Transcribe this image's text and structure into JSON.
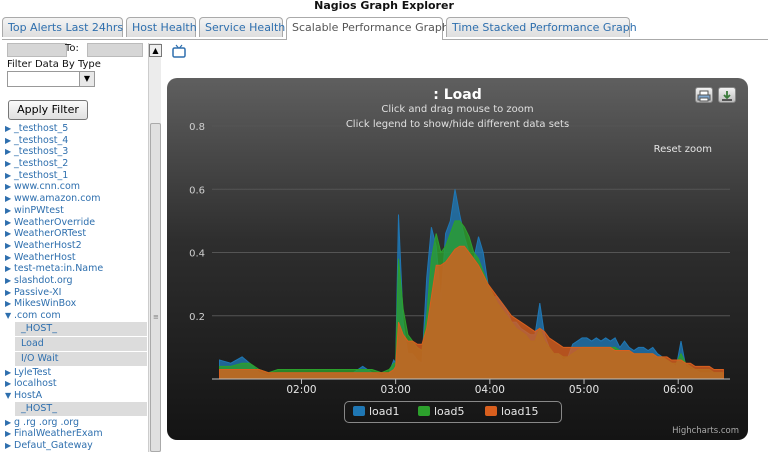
{
  "app": {
    "title": "Nagios Graph Explorer"
  },
  "tabs": [
    {
      "label": "Top Alerts Last 24hrs",
      "active": false
    },
    {
      "label": "Host Health",
      "active": false
    },
    {
      "label": "Service Health",
      "active": false
    },
    {
      "label": "Scalable Performance Graph",
      "active": true
    },
    {
      "label": "Time Stacked Performance Graph",
      "active": false
    }
  ],
  "sidebar": {
    "to_label": "To:",
    "filter_label": "Filter Data By Type",
    "filter_value": "",
    "apply_label": "Apply Filter",
    "hosts": [
      {
        "label": "_testhost_5",
        "expanded": false
      },
      {
        "label": "_testhost_4",
        "expanded": false
      },
      {
        "label": "_testhost_3",
        "expanded": false
      },
      {
        "label": "_testhost_2",
        "expanded": false
      },
      {
        "label": "_testhost_1",
        "expanded": false
      },
      {
        "label": "www.cnn.com",
        "expanded": false
      },
      {
        "label": "www.amazon.com",
        "expanded": false
      },
      {
        "label": "winPWtest",
        "expanded": false
      },
      {
        "label": "WeatherOverride",
        "expanded": false
      },
      {
        "label": "WeatherORTest",
        "expanded": false
      },
      {
        "label": "WeatherHost2",
        "expanded": false
      },
      {
        "label": "WeatherHost",
        "expanded": false
      },
      {
        "label": "test-meta:in.Name",
        "expanded": false
      },
      {
        "label": "slashdot.org",
        "expanded": false
      },
      {
        "label": "Passive-XI",
        "expanded": false
      },
      {
        "label": "MikesWinBox",
        "expanded": false
      },
      {
        "label": ".com          com",
        "expanded": true,
        "services": [
          "_HOST_",
          "Load",
          "I/O Wait"
        ]
      },
      {
        "label": "LyleTest",
        "expanded": false
      },
      {
        "label": "localhost",
        "expanded": false
      },
      {
        "label": "HostA",
        "expanded": true,
        "services": [
          "_HOST_"
        ]
      },
      {
        "label": "g .rg              .org   .org",
        "expanded": false
      },
      {
        "label": "FinalWeatherExam",
        "expanded": false
      },
      {
        "label": "Defaut_Gateway",
        "expanded": false
      }
    ]
  },
  "chart": {
    "title": ": Load",
    "subtitle1": "Click and drag mouse to zoom",
    "subtitle2": "Click legend to show/hide different data sets",
    "reset_zoom": "Reset zoom",
    "credits": "Highcharts.com",
    "print_icon": "printer-icon",
    "export_icon": "download-icon"
  },
  "chart_data": {
    "type": "area",
    "x_unit": "hours",
    "xlim": [
      1.05,
      6.55
    ],
    "ylim": [
      0,
      0.8
    ],
    "yticks": [
      0.2,
      0.4,
      0.6,
      0.8
    ],
    "ytick_labels": [
      "0.2",
      "0.4",
      "0.6",
      "0.8"
    ],
    "xticks": [
      2,
      3,
      4,
      5,
      6
    ],
    "xtick_labels": [
      "02:00",
      "03:00",
      "04:00",
      "05:00",
      "06:00"
    ],
    "grid": true,
    "legend": "bottom-center",
    "x": [
      1.13,
      1.25,
      1.37,
      1.45,
      1.55,
      1.65,
      1.75,
      1.85,
      1.95,
      2.05,
      2.15,
      2.25,
      2.35,
      2.45,
      2.55,
      2.65,
      2.75,
      2.85,
      2.93,
      2.98,
      3.0,
      3.03,
      3.08,
      3.13,
      3.18,
      3.23,
      3.28,
      3.33,
      3.38,
      3.43,
      3.48,
      3.53,
      3.58,
      3.63,
      3.68,
      3.73,
      3.78,
      3.83,
      3.88,
      3.93,
      3.98,
      4.03,
      4.08,
      4.13,
      4.18,
      4.23,
      4.28,
      4.33,
      4.38,
      4.43,
      4.48,
      4.53,
      4.58,
      4.63,
      4.68,
      4.73,
      4.78,
      4.83,
      4.88,
      4.93,
      4.98,
      5.03,
      5.08,
      5.13,
      5.18,
      5.23,
      5.28,
      5.33,
      5.38,
      5.43,
      5.48,
      5.53,
      5.58,
      5.63,
      5.68,
      5.73,
      5.78,
      5.83,
      5.88,
      5.93,
      5.98,
      6.03,
      6.08,
      6.13,
      6.18,
      6.23,
      6.28,
      6.33,
      6.38,
      6.43,
      6.48
    ],
    "series": [
      {
        "name": "load1",
        "color": "#1f77b4",
        "values": [
          0.06,
          0.05,
          0.07,
          0.05,
          0.02,
          0.01,
          0.02,
          0.02,
          0.02,
          0.02,
          0.02,
          0.02,
          0.02,
          0.02,
          0.02,
          0.04,
          0.02,
          0.01,
          0.02,
          0.06,
          0.05,
          0.52,
          0.18,
          0.08,
          0.08,
          0.06,
          0.05,
          0.32,
          0.48,
          0.42,
          0.25,
          0.46,
          0.5,
          0.6,
          0.52,
          0.45,
          0.4,
          0.38,
          0.45,
          0.4,
          0.3,
          0.26,
          0.26,
          0.24,
          0.22,
          0.18,
          0.18,
          0.16,
          0.15,
          0.14,
          0.14,
          0.24,
          0.14,
          0.1,
          0.08,
          0.08,
          0.06,
          0.07,
          0.11,
          0.12,
          0.13,
          0.13,
          0.12,
          0.13,
          0.12,
          0.13,
          0.12,
          0.13,
          0.1,
          0.12,
          0.1,
          0.09,
          0.1,
          0.1,
          0.09,
          0.1,
          0.08,
          0.07,
          0.06,
          0.05,
          0.04,
          0.12,
          0.04,
          0.03,
          0.03,
          0.02,
          0.02,
          0.02,
          0.02,
          0.02,
          0.02
        ]
      },
      {
        "name": "load5",
        "color": "#2ca02c",
        "values": [
          0.04,
          0.04,
          0.05,
          0.05,
          0.03,
          0.02,
          0.03,
          0.03,
          0.03,
          0.03,
          0.03,
          0.03,
          0.03,
          0.03,
          0.03,
          0.03,
          0.03,
          0.02,
          0.03,
          0.05,
          0.05,
          0.38,
          0.22,
          0.14,
          0.12,
          0.1,
          0.09,
          0.2,
          0.38,
          0.46,
          0.4,
          0.42,
          0.46,
          0.5,
          0.5,
          0.48,
          0.45,
          0.4,
          0.38,
          0.34,
          0.3,
          0.27,
          0.24,
          0.22,
          0.2,
          0.18,
          0.16,
          0.15,
          0.14,
          0.12,
          0.12,
          0.16,
          0.12,
          0.1,
          0.08,
          0.08,
          0.07,
          0.07,
          0.08,
          0.09,
          0.1,
          0.1,
          0.1,
          0.1,
          0.1,
          0.1,
          0.1,
          0.1,
          0.09,
          0.09,
          0.09,
          0.08,
          0.08,
          0.08,
          0.08,
          0.08,
          0.07,
          0.07,
          0.06,
          0.05,
          0.05,
          0.08,
          0.05,
          0.04,
          0.03,
          0.03,
          0.03,
          0.03,
          0.02,
          0.02,
          0.02
        ]
      },
      {
        "name": "load15",
        "color": "#d95f1e",
        "values": [
          0.03,
          0.03,
          0.03,
          0.03,
          0.03,
          0.02,
          0.02,
          0.02,
          0.02,
          0.02,
          0.02,
          0.02,
          0.02,
          0.02,
          0.02,
          0.02,
          0.02,
          0.02,
          0.02,
          0.03,
          0.04,
          0.18,
          0.14,
          0.12,
          0.12,
          0.11,
          0.11,
          0.16,
          0.26,
          0.36,
          0.36,
          0.37,
          0.39,
          0.41,
          0.42,
          0.42,
          0.4,
          0.38,
          0.36,
          0.33,
          0.3,
          0.28,
          0.26,
          0.24,
          0.22,
          0.2,
          0.19,
          0.18,
          0.17,
          0.16,
          0.15,
          0.16,
          0.15,
          0.13,
          0.12,
          0.11,
          0.1,
          0.1,
          0.1,
          0.1,
          0.1,
          0.1,
          0.1,
          0.1,
          0.1,
          0.1,
          0.1,
          0.09,
          0.09,
          0.09,
          0.09,
          0.08,
          0.08,
          0.08,
          0.08,
          0.08,
          0.07,
          0.07,
          0.07,
          0.06,
          0.06,
          0.06,
          0.05,
          0.05,
          0.04,
          0.04,
          0.04,
          0.04,
          0.03,
          0.03,
          0.03
        ]
      }
    ]
  }
}
